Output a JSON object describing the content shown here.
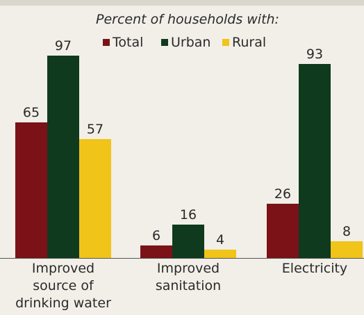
{
  "colors": {
    "total": "#7a1218",
    "urban": "#0f3a1e",
    "rural": "#f0c419",
    "text": "#2a2a2a",
    "baseline": "#555555"
  },
  "chart_data": {
    "type": "bar",
    "subtitle": "Percent of households with:",
    "categories": [
      [
        "Improved",
        "source of",
        "drinking water"
      ],
      [
        "Improved",
        "sanitation"
      ],
      [
        "Electricity"
      ]
    ],
    "series": [
      {
        "name": "Total",
        "values": [
          65,
          6,
          26
        ],
        "color": "#7a1218"
      },
      {
        "name": "Urban",
        "values": [
          97,
          16,
          93
        ],
        "color": "#0f3a1e"
      },
      {
        "name": "Rural",
        "values": [
          57,
          4,
          8
        ],
        "color": "#f0c419"
      }
    ],
    "ylim": [
      0,
      100
    ],
    "grid": false,
    "legend_position": "top-center"
  }
}
